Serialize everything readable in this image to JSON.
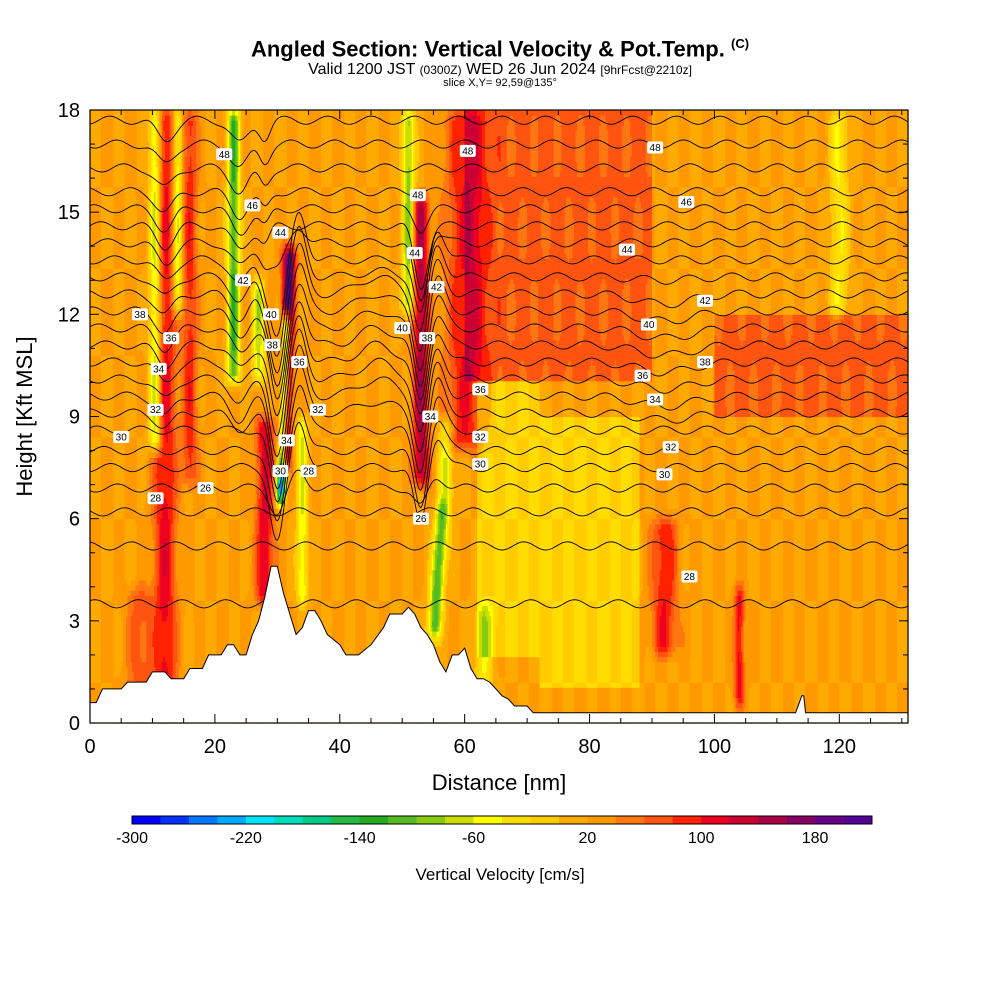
{
  "header": {
    "title": "Angled Section: Vertical Velocity & Pot.Temp.",
    "title_mark": "(C)",
    "valid_prefix": "Valid 1200 JST",
    "valid_utc": "(0300Z)",
    "valid_date": "WED 26 Jun 2024",
    "valid_fcst": "[9hrFcst@2210z]",
    "slice": "slice X,Y= 92,59@135°"
  },
  "chart_data": {
    "type": "heatmap",
    "title": "Angled Section: Vertical Velocity & Pot.Temp.",
    "xlabel": "Distance [nm]",
    "ylabel": "Height [Kft MSL]",
    "xlim": [
      0,
      131
    ],
    "ylim": [
      0,
      18
    ],
    "xticks": [
      0,
      20,
      40,
      60,
      80,
      100,
      120
    ],
    "yticks": [
      0,
      3,
      6,
      9,
      12,
      15,
      18
    ],
    "colorbar": {
      "label": "Vertical Velocity [cm/s]",
      "min": -300,
      "max": 220,
      "step": 20,
      "tick_values": [
        -300,
        -220,
        -140,
        -60,
        20,
        100,
        180
      ],
      "colors": [
        "#0000ff",
        "#0033ff",
        "#0077ff",
        "#00aaff",
        "#00e5ff",
        "#00ddbb",
        "#00cc88",
        "#22bb44",
        "#22aa22",
        "#55bb22",
        "#88cc11",
        "#ccdd00",
        "#ffff00",
        "#ffdd00",
        "#ffcc00",
        "#ffaa00",
        "#ff9900",
        "#ff7711",
        "#ff5511",
        "#ff2200",
        "#ee0022",
        "#cc0033",
        "#aa0044",
        "#880066",
        "#660088",
        "#550099"
      ]
    },
    "background_w": 20,
    "updrafts": [
      {
        "x": 12,
        "w": 90,
        "width": 1.8,
        "z0": 0,
        "z1": 18,
        "tilt": 0
      },
      {
        "x": 16,
        "w": 70,
        "width": 1.2,
        "z0": 7,
        "z1": 18,
        "tilt": 0
      },
      {
        "x": 28,
        "w": 100,
        "width": 1.4,
        "z0": 3.5,
        "z1": 9,
        "tilt": 0
      },
      {
        "x": 31,
        "w": 190,
        "width": 1.0,
        "z0": 7.5,
        "z1": 14,
        "tilt": 0.15
      },
      {
        "x": 53,
        "w": 130,
        "width": 1.2,
        "z0": 7,
        "z1": 15.5,
        "tilt": 0
      },
      {
        "x": 60,
        "w": 80,
        "width": 3.0,
        "z0": 8,
        "z1": 18,
        "tilt": 0
      },
      {
        "x": 92,
        "w": 80,
        "width": 2.0,
        "z0": 2,
        "z1": 6,
        "tilt": 0
      },
      {
        "x": 104,
        "w": 90,
        "width": 0.8,
        "z0": 0.5,
        "z1": 4,
        "tilt": 0
      },
      {
        "x": 8,
        "w": 50,
        "width": 2.0,
        "z0": 0,
        "z1": 4,
        "tilt": 0
      }
    ],
    "downdrafts": [
      {
        "x": 10.5,
        "w": -120,
        "width": 1.0,
        "z0": 8,
        "z1": 18,
        "tilt": 0
      },
      {
        "x": 14,
        "w": -100,
        "width": 0.8,
        "z0": 12,
        "z1": 18,
        "tilt": 0
      },
      {
        "x": 23,
        "w": -140,
        "width": 1.0,
        "z0": 10,
        "z1": 18,
        "tilt": 0
      },
      {
        "x": 27,
        "w": -90,
        "width": 1.0,
        "z0": 10,
        "z1": 13,
        "tilt": 0
      },
      {
        "x": 30.5,
        "w": -260,
        "width": 0.7,
        "z0": 6.5,
        "z1": 12,
        "tilt": 0.18
      },
      {
        "x": 34,
        "w": -80,
        "width": 0.9,
        "z0": 3.5,
        "z1": 9,
        "tilt": 0
      },
      {
        "x": 51,
        "w": -110,
        "width": 1.0,
        "z0": 12,
        "z1": 18,
        "tilt": 0
      },
      {
        "x": 55,
        "w": -140,
        "width": 1.1,
        "z0": 2.5,
        "z1": 6.5,
        "tilt": 0.4
      },
      {
        "x": 57,
        "w": -80,
        "width": 1.2,
        "z0": 6.5,
        "z1": 9,
        "tilt": 0
      },
      {
        "x": 63,
        "w": -60,
        "width": 1.5,
        "z0": 1,
        "z1": 3.5,
        "tilt": 0
      },
      {
        "x": 120,
        "w": -60,
        "width": 1.5,
        "z0": 12,
        "z1": 18,
        "tilt": 0
      }
    ],
    "warm_zones": [
      {
        "x0": 60,
        "x1": 90,
        "z0": 10,
        "z1": 18,
        "w": 45
      },
      {
        "x0": 62,
        "x1": 72,
        "z0": 2,
        "z1": 10,
        "w": -40
      },
      {
        "x0": 72,
        "x1": 88,
        "z0": 1,
        "z1": 9,
        "w": -40
      },
      {
        "x0": 100,
        "x1": 131,
        "z0": 9,
        "z1": 12,
        "w": 45
      }
    ],
    "terrain_x": [
      0,
      1,
      2,
      5,
      6,
      9,
      10,
      12,
      13,
      15,
      16,
      18,
      19,
      21,
      22,
      23,
      24,
      25,
      26,
      27,
      28,
      29,
      30,
      31,
      32,
      33,
      34,
      35,
      36,
      37,
      38,
      40,
      41,
      42,
      43,
      45,
      47,
      48,
      49,
      50,
      51,
      52,
      53,
      54,
      55,
      56,
      57,
      58,
      59,
      60,
      61,
      62,
      63,
      64,
      65,
      66,
      67,
      68,
      69,
      70,
      71,
      72,
      113,
      114,
      114.3,
      114.6,
      115,
      131
    ],
    "terrain_z": [
      0.6,
      0.6,
      1.0,
      1.0,
      1.2,
      1.2,
      1.5,
      1.5,
      1.3,
      1.3,
      1.6,
      1.6,
      2.0,
      2.0,
      2.3,
      2.3,
      2.0,
      2.0,
      2.6,
      3.0,
      3.7,
      4.6,
      4.6,
      3.8,
      3.2,
      2.6,
      2.8,
      3.3,
      3.3,
      3.0,
      2.6,
      2.3,
      2.0,
      2.0,
      2.0,
      2.3,
      2.8,
      3.2,
      3.2,
      3.2,
      3.4,
      3.2,
      2.8,
      2.6,
      2.3,
      1.8,
      1.5,
      2.0,
      2.0,
      2.2,
      1.6,
      1.3,
      1.3,
      1.2,
      1.0,
      0.8,
      0.7,
      0.5,
      0.5,
      0.5,
      0.3,
      0.3,
      0.3,
      0.8,
      0.8,
      0.3,
      0.3,
      0.3
    ],
    "theta_levels": [
      26,
      27,
      28,
      29,
      30,
      31,
      32,
      33,
      34,
      35,
      36,
      37,
      38,
      39,
      40,
      41,
      42,
      43,
      44,
      45,
      46,
      47,
      48,
      49
    ],
    "theta_base_height": {
      "26": 3.5,
      "27": 5.2,
      "28": 6.2,
      "29": 6.9,
      "30": 7.5,
      "31": 8.0,
      "32": 8.6,
      "33": 9.1,
      "34": 9.6,
      "35": 10.1,
      "36": 10.6,
      "37": 11.1,
      "38": 11.6,
      "39": 12.1,
      "40": 12.6,
      "41": 13.1,
      "42": 13.6,
      "43": 14.1,
      "44": 14.6,
      "45": 15.1,
      "46": 15.6,
      "47": 16.3,
      "48": 17.0,
      "49": 17.7
    },
    "theta_perturbations": [
      {
        "x": 30,
        "dz": -2.2,
        "width": 1.6,
        "z0": 7,
        "z1": 14
      },
      {
        "x": 33.5,
        "dz": 1.4,
        "width": 1.6,
        "z0": 7,
        "z1": 14
      },
      {
        "x": 53,
        "dz": -1.8,
        "width": 1.5,
        "z0": 7,
        "z1": 15
      },
      {
        "x": 55.5,
        "dz": 1.0,
        "width": 1.8,
        "z0": 7,
        "z1": 14
      },
      {
        "x": 12,
        "dz": -0.6,
        "width": 2.0,
        "z0": 9,
        "z1": 18
      },
      {
        "x": 24,
        "dz": -0.7,
        "width": 2.0,
        "z0": 9,
        "z1": 18
      },
      {
        "x": 28,
        "dz": -0.5,
        "width": 1.2,
        "z0": 12,
        "z1": 18
      },
      {
        "x": 46,
        "dz": 0.5,
        "width": 4.0,
        "z0": 9,
        "z1": 13
      },
      {
        "x": 92,
        "dz": -0.3,
        "width": 6.0,
        "z0": 9,
        "z1": 13
      }
    ],
    "contour_labels": [
      {
        "text": "48",
        "x": 21.5,
        "z": 16.7
      },
      {
        "text": "46",
        "x": 26,
        "z": 15.2
      },
      {
        "text": "44",
        "x": 30.5,
        "z": 14.4
      },
      {
        "text": "42",
        "x": 24.5,
        "z": 13.0
      },
      {
        "text": "40",
        "x": 29,
        "z": 12.0
      },
      {
        "text": "38",
        "x": 8,
        "z": 12.0
      },
      {
        "text": "38",
        "x": 29.2,
        "z": 11.1
      },
      {
        "text": "36",
        "x": 13,
        "z": 11.3
      },
      {
        "text": "36",
        "x": 33.5,
        "z": 10.6
      },
      {
        "text": "34",
        "x": 11,
        "z": 10.4
      },
      {
        "text": "32",
        "x": 10.5,
        "z": 9.2
      },
      {
        "text": "32",
        "x": 36.5,
        "z": 9.2
      },
      {
        "text": "30",
        "x": 5,
        "z": 8.4
      },
      {
        "text": "34",
        "x": 31.5,
        "z": 8.3
      },
      {
        "text": "30",
        "x": 30.5,
        "z": 7.4
      },
      {
        "text": "28",
        "x": 35,
        "z": 7.4
      },
      {
        "text": "28",
        "x": 10.5,
        "z": 6.6
      },
      {
        "text": "26",
        "x": 18.5,
        "z": 6.9
      },
      {
        "text": "48",
        "x": 60.5,
        "z": 16.8
      },
      {
        "text": "48",
        "x": 52.5,
        "z": 15.5
      },
      {
        "text": "44",
        "x": 52,
        "z": 13.8
      },
      {
        "text": "42",
        "x": 55.5,
        "z": 12.8
      },
      {
        "text": "40",
        "x": 50,
        "z": 11.6
      },
      {
        "text": "38",
        "x": 54,
        "z": 11.3
      },
      {
        "text": "36",
        "x": 62.5,
        "z": 9.8
      },
      {
        "text": "34",
        "x": 54.5,
        "z": 9.0
      },
      {
        "text": "32",
        "x": 62.5,
        "z": 8.4
      },
      {
        "text": "30",
        "x": 62.5,
        "z": 7.6
      },
      {
        "text": "26",
        "x": 53,
        "z": 6.0
      },
      {
        "text": "48",
        "x": 90.5,
        "z": 16.9
      },
      {
        "text": "46",
        "x": 95.5,
        "z": 15.3
      },
      {
        "text": "44",
        "x": 86,
        "z": 13.9
      },
      {
        "text": "42",
        "x": 98.5,
        "z": 12.4
      },
      {
        "text": "40",
        "x": 89.5,
        "z": 11.7
      },
      {
        "text": "38",
        "x": 98.5,
        "z": 10.6
      },
      {
        "text": "36",
        "x": 88.5,
        "z": 10.2
      },
      {
        "text": "34",
        "x": 90.5,
        "z": 9.5
      },
      {
        "text": "32",
        "x": 93,
        "z": 8.1
      },
      {
        "text": "30",
        "x": 92,
        "z": 7.3
      },
      {
        "text": "28",
        "x": 96,
        "z": 4.3
      }
    ]
  }
}
